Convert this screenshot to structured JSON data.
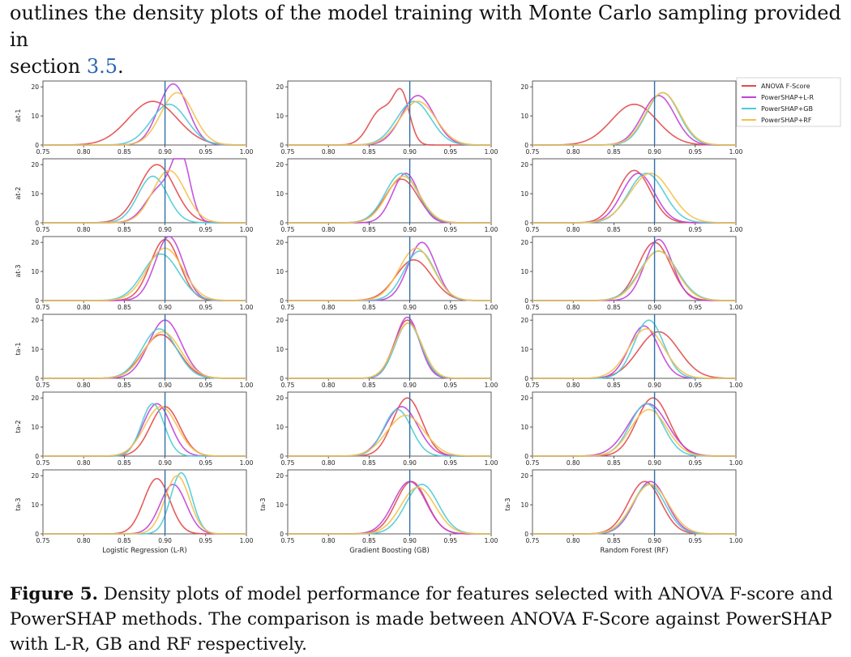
{
  "intro": {
    "line1": "outlines the density plots of the model training with Monte Carlo sampling provided in",
    "prefix": "section ",
    "link": "3.5",
    "suffix": "."
  },
  "caption": {
    "label": "Figure 5.",
    "text": " Density plots of model performance for features selected with ANOVA F-score and PowerSHAP methods. The comparison is made between ANOVA F-Score against PowerSHAP with L-R, GB and RF respectively."
  },
  "colors": {
    "anova": "#e34a4a",
    "lr": "#c043d8",
    "gb": "#4ecad6",
    "rf": "#f5c04a",
    "vline": "#2f6fa8"
  },
  "chart_data": {
    "type": "line",
    "description_of_panels": "grid",
    "columns": [
      "Logistic Regression (L-R)",
      "Gradient Boosting (GB)",
      "Random Forest (RF)"
    ],
    "rows": [
      "at-1",
      "at-2",
      "at-3",
      "ta-1",
      "ta-2",
      "ta-3"
    ],
    "xlim": [
      0.75,
      1.0
    ],
    "xticks": [
      "0.75",
      "0.80",
      "0.85",
      "0.90",
      "0.95",
      "1.00"
    ],
    "yticks": [
      "0",
      "10",
      "20"
    ],
    "ylim": [
      0,
      22
    ],
    "reference_line_x": 0.9,
    "legend": {
      "placement": "top-right",
      "entries": [
        "ANOVA F-Score",
        "PowerSHAP+L-R",
        "PowerSHAP+GB",
        "PowerSHAP+RF"
      ]
    },
    "panels": [
      [
        [
          [
            [
              0.885,
              15,
              0.03
            ]
          ],
          [
            [
              0.91,
              21,
              0.018
            ]
          ],
          [
            [
              0.905,
              14,
              0.022
            ]
          ],
          [
            [
              0.915,
              18,
              0.02
            ]
          ]
        ],
        [
          [
            [
              0.89,
              20,
              0.022
            ]
          ],
          [
            [
              0.895,
              12,
              0.018
            ],
            [
              0.92,
              20,
              0.011
            ]
          ],
          [
            [
              0.885,
              16,
              0.018
            ]
          ],
          [
            [
              0.905,
              18,
              0.02
            ]
          ]
        ],
        [
          [
            [
              0.9,
              21,
              0.018
            ]
          ],
          [
            [
              0.905,
              22,
              0.017
            ]
          ],
          [
            [
              0.895,
              16,
              0.022
            ]
          ],
          [
            [
              0.9,
              18,
              0.022
            ]
          ]
        ],
        [
          [
            [
              0.895,
              15,
              0.022
            ]
          ],
          [
            [
              0.9,
              20,
              0.02
            ]
          ],
          [
            [
              0.893,
              17,
              0.021
            ]
          ],
          [
            [
              0.897,
              16,
              0.022
            ]
          ]
        ],
        [
          [
            [
              0.9,
              17,
              0.018
            ]
          ],
          [
            [
              0.89,
              18,
              0.017
            ]
          ],
          [
            [
              0.885,
              18,
              0.014
            ]
          ],
          [
            [
              0.895,
              17,
              0.02
            ]
          ]
        ],
        [
          [
            [
              0.89,
              19,
              0.016
            ]
          ],
          [
            [
              0.91,
              17,
              0.016
            ]
          ],
          [
            [
              0.92,
              21,
              0.013
            ]
          ],
          [
            [
              0.915,
              20,
              0.015
            ]
          ]
        ]
      ],
      [
        [
          [
            [
              0.865,
              12,
              0.015
            ],
            [
              0.89,
              16,
              0.01
            ]
          ],
          [
            [
              0.91,
              17,
              0.02
            ]
          ],
          [
            [
              0.905,
              15,
              0.021
            ]
          ],
          [
            [
              0.91,
              15,
              0.022
            ]
          ]
        ],
        [
          [
            [
              0.89,
              15,
              0.02
            ]
          ],
          [
            [
              0.895,
              17,
              0.016
            ]
          ],
          [
            [
              0.89,
              17,
              0.02
            ]
          ],
          [
            [
              0.892,
              16,
              0.02
            ]
          ]
        ],
        [
          [
            [
              0.905,
              14,
              0.022
            ]
          ],
          [
            [
              0.915,
              20,
              0.017
            ]
          ],
          [
            [
              0.912,
              17,
              0.019
            ]
          ],
          [
            [
              0.908,
              18,
              0.021
            ]
          ]
        ],
        [
          [
            [
              0.897,
              20,
              0.016
            ]
          ],
          [
            [
              0.897,
              21,
              0.015
            ]
          ],
          [
            [
              0.898,
              19,
              0.016
            ]
          ],
          [
            [
              0.898,
              19,
              0.017
            ]
          ]
        ],
        [
          [
            [
              0.897,
              20,
              0.018
            ]
          ],
          [
            [
              0.89,
              17,
              0.02
            ]
          ],
          [
            [
              0.885,
              16,
              0.017
            ]
          ],
          [
            [
              0.895,
              14,
              0.023
            ]
          ]
        ],
        [
          [
            [
              0.902,
              18,
              0.019
            ]
          ],
          [
            [
              0.9,
              18,
              0.02
            ]
          ],
          [
            [
              0.915,
              17,
              0.02
            ]
          ],
          [
            [
              0.91,
              16,
              0.021
            ]
          ]
        ]
      ],
      [
        [
          [
            [
              0.875,
              14,
              0.028
            ]
          ],
          [
            [
              0.905,
              17,
              0.02
            ]
          ],
          [
            [
              0.91,
              18,
              0.02
            ]
          ],
          [
            [
              0.91,
              18,
              0.021
            ]
          ]
        ],
        [
          [
            [
              0.875,
              18,
              0.02
            ]
          ],
          [
            [
              0.88,
              17,
              0.02
            ]
          ],
          [
            [
              0.89,
              17,
              0.022
            ]
          ],
          [
            [
              0.895,
              17,
              0.025
            ]
          ]
        ],
        [
          [
            [
              0.9,
              20,
              0.02
            ]
          ],
          [
            [
              0.905,
              21,
              0.017
            ]
          ],
          [
            [
              0.905,
              17,
              0.023
            ]
          ],
          [
            [
              0.905,
              17,
              0.022
            ]
          ]
        ],
        [
          [
            [
              0.905,
              16,
              0.025
            ]
          ],
          [
            [
              0.887,
              18,
              0.018
            ]
          ],
          [
            [
              0.893,
              20,
              0.018
            ]
          ],
          [
            [
              0.89,
              17,
              0.022
            ]
          ]
        ],
        [
          [
            [
              0.898,
              20,
              0.02
            ]
          ],
          [
            [
              0.892,
              18,
              0.024
            ]
          ],
          [
            [
              0.89,
              18,
              0.02
            ]
          ],
          [
            [
              0.893,
              16,
              0.022
            ]
          ]
        ],
        [
          [
            [
              0.888,
              18,
              0.02
            ]
          ],
          [
            [
              0.895,
              18,
              0.02
            ]
          ],
          [
            [
              0.893,
              17,
              0.02
            ]
          ],
          [
            [
              0.895,
              17,
              0.022
            ]
          ]
        ]
      ]
    ]
  }
}
